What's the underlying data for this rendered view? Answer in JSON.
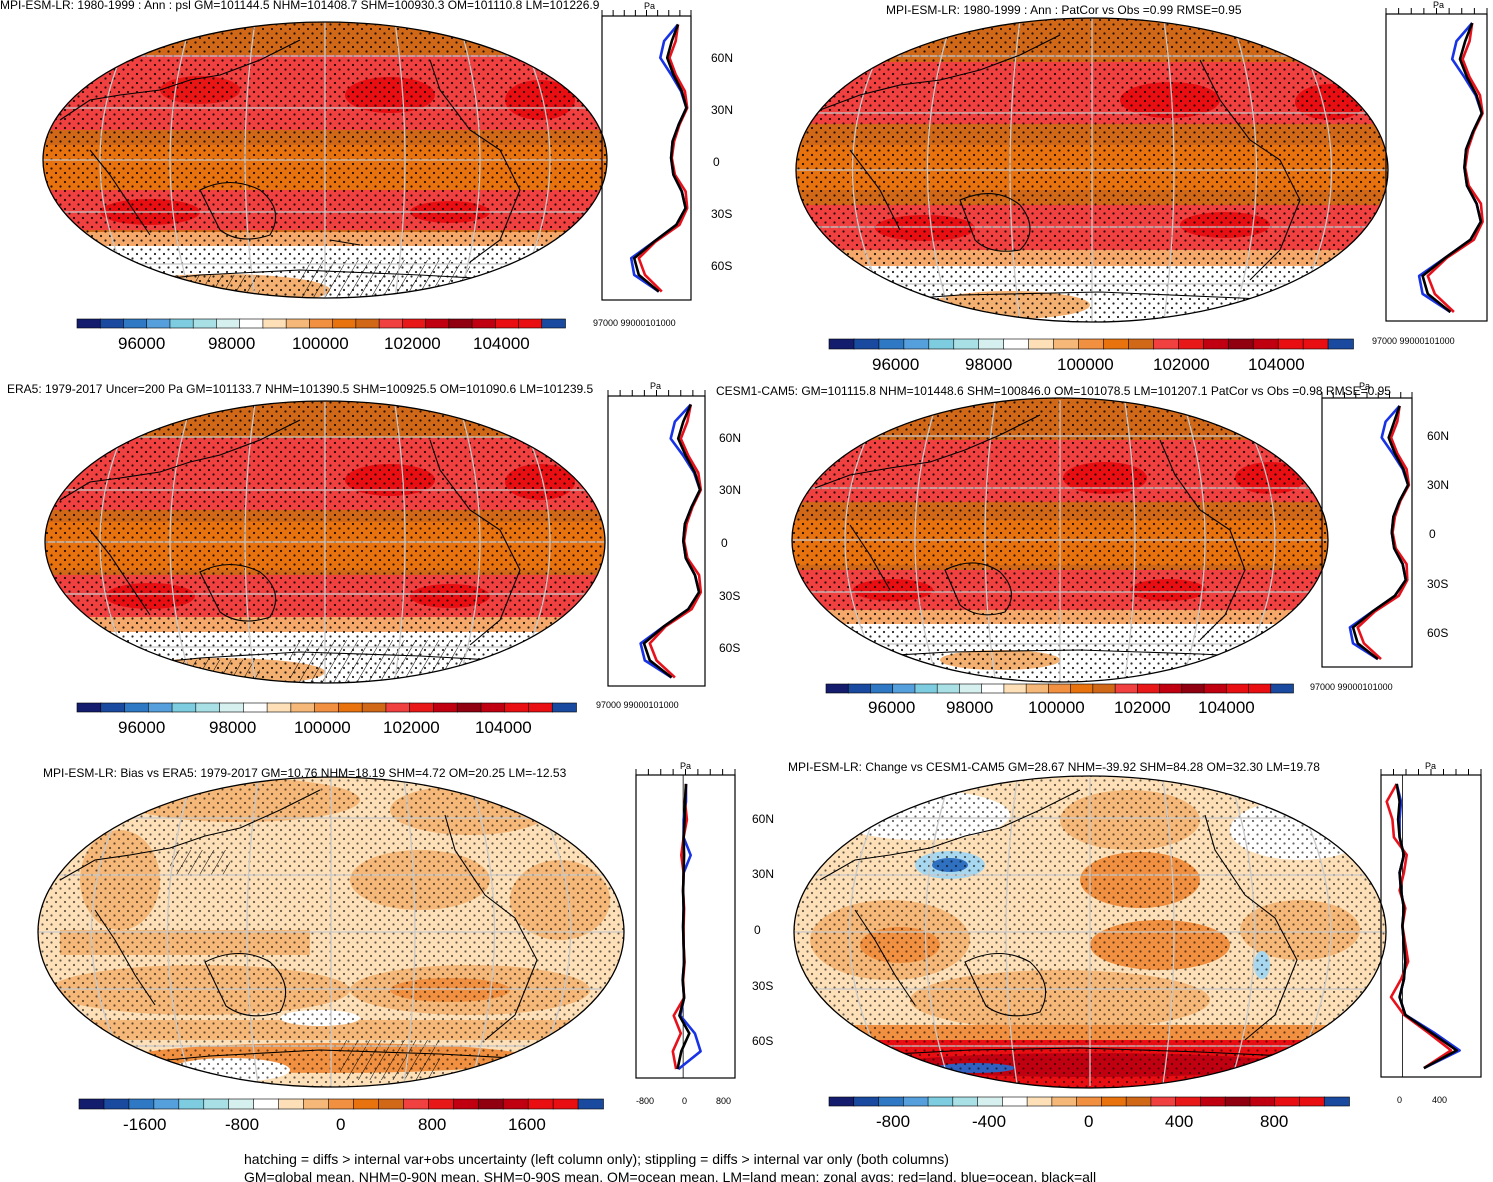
{
  "figure": {
    "footer": [
      "hatching = diffs > internal var+obs uncertainty (left column only); stippling = diffs > internal var only (both columns)",
      "GM=global mean, NHM=0-90N mean, SHM=0-90S mean, OM=ocean mean, LM=land mean; zonal avgs: red=land, blue=ocean, black=all"
    ],
    "lat_labels": [
      "60N",
      "30N",
      "0",
      "30S",
      "60S"
    ],
    "unit_label": "Pa"
  },
  "colors": {
    "land": "#e8111b",
    "ocean": "#1833e6",
    "all": "#000000"
  },
  "chart_data": [
    {
      "type": "heatmap",
      "panel": "mpi-mean",
      "title": "MPI-ESM-LR: 1980-1999 : Ann : psl GM=101144.5 NHM=101408.7 SHM=100930.3 OM=101110.8 LM=101226.9",
      "colorbar_ticks": [
        "96000",
        "98000",
        "100000",
        "102000",
        "104000"
      ],
      "zonal_xticks": "97000 99000101000",
      "zonal": {
        "lat": [
          80,
          70,
          60,
          50,
          40,
          30,
          20,
          10,
          0,
          -10,
          -20,
          -30,
          -40,
          -50,
          -60,
          -70,
          -80
        ],
        "all": [
          101450,
          101050,
          100750,
          101150,
          101700,
          102000,
          101500,
          101100,
          101000,
          101150,
          101700,
          101950,
          101350,
          99900,
          98600,
          98900,
          100200
        ],
        "ocean": [
          101450,
          100550,
          100300,
          101000,
          101650,
          102000,
          101500,
          101100,
          101000,
          101150,
          101700,
          101950,
          101350,
          99900,
          98400,
          98600,
          100200
        ],
        "land": [
          101450,
          101300,
          100900,
          101300,
          101900,
          102050,
          101550,
          101200,
          101050,
          101250,
          101950,
          102050,
          101550,
          100000,
          98900,
          99300,
          100400
        ]
      }
    },
    {
      "type": "heatmap",
      "panel": "mpi-patcor",
      "title": "MPI-ESM-LR: 1980-1999 : Ann : PatCor vs Obs =0.99 RMSE=0.95",
      "colorbar_ticks": [
        "96000",
        "98000",
        "100000",
        "102000",
        "104000"
      ],
      "zonal_xticks": "97000 99000101000",
      "zonal": {
        "lat": [
          80,
          70,
          60,
          50,
          40,
          30,
          20,
          10,
          0,
          -10,
          -20,
          -30,
          -40,
          -50,
          -60,
          -70,
          -80
        ],
        "all": [
          101450,
          101050,
          100750,
          101150,
          101700,
          102000,
          101500,
          101100,
          101000,
          101150,
          101700,
          101950,
          101350,
          99900,
          98600,
          98900,
          100200
        ],
        "ocean": [
          101450,
          100550,
          100300,
          101000,
          101650,
          102000,
          101500,
          101100,
          101000,
          101150,
          101700,
          101950,
          101350,
          99900,
          98400,
          98600,
          100200
        ],
        "land": [
          101450,
          101300,
          100900,
          101300,
          101900,
          102050,
          101550,
          101200,
          101050,
          101250,
          101950,
          102050,
          101550,
          100000,
          98900,
          99300,
          100400
        ]
      }
    },
    {
      "type": "heatmap",
      "panel": "era5-mean",
      "title": "ERA5: 1979-2017 Uncer=200 Pa GM=101133.7 NHM=101390.5 SHM=100925.5 OM=101090.6 LM=101239.5",
      "colorbar_ticks": [
        "96000",
        "98000",
        "100000",
        "102000",
        "104000"
      ],
      "zonal_xticks": "97000 99000101000",
      "zonal": {
        "lat": [
          80,
          70,
          60,
          50,
          40,
          30,
          20,
          10,
          0,
          -10,
          -20,
          -30,
          -40,
          -50,
          -60,
          -70,
          -80
        ],
        "all": [
          101450,
          101000,
          100700,
          101150,
          101700,
          102000,
          101500,
          101100,
          101000,
          101150,
          101700,
          101950,
          101300,
          99850,
          98650,
          99000,
          100300
        ],
        "ocean": [
          101450,
          100500,
          100250,
          101000,
          101650,
          102000,
          101500,
          101100,
          101000,
          101150,
          101700,
          101950,
          101300,
          99850,
          98450,
          98700,
          100300
        ],
        "land": [
          101450,
          101250,
          100850,
          101300,
          101900,
          102050,
          101550,
          101200,
          101050,
          101250,
          101950,
          102050,
          101500,
          99950,
          99000,
          99400,
          100500
        ]
      }
    },
    {
      "type": "heatmap",
      "panel": "cesm-mean",
      "title": "CESM1-CAM5: GM=101115.8 NHM=101448.6 SHM=100846.0 OM=101078.5 LM=101207.1 PatCor vs Obs =0.98 RMSE=0.95",
      "colorbar_ticks": [
        "96000",
        "98000",
        "100000",
        "102000",
        "104000"
      ],
      "zonal_xticks": "97000 99000101000",
      "zonal": {
        "lat": [
          80,
          70,
          60,
          50,
          40,
          30,
          20,
          10,
          0,
          -10,
          -20,
          -30,
          -40,
          -50,
          -60,
          -70,
          -80
        ],
        "all": [
          101500,
          101150,
          100800,
          101200,
          101750,
          102050,
          101500,
          101100,
          101000,
          101150,
          101700,
          101900,
          101200,
          99750,
          98500,
          98800,
          100100
        ],
        "ocean": [
          101500,
          100600,
          100350,
          101050,
          101700,
          102050,
          101500,
          101100,
          101000,
          101150,
          101700,
          101900,
          101200,
          99750,
          98300,
          98500,
          100100
        ],
        "land": [
          101500,
          101350,
          100950,
          101350,
          101950,
          102100,
          101550,
          101200,
          101050,
          101250,
          101950,
          102000,
          101450,
          99900,
          98800,
          99200,
          100300
        ]
      }
    },
    {
      "type": "heatmap",
      "panel": "mpi-bias",
      "title": "MPI-ESM-LR: Bias vs ERA5: 1979-2017 GM=10.76 NHM=18.19 SHM=4.72 OM=20.25 LM=-12.53",
      "colorbar_ticks": [
        "-1600",
        "-800",
        "0",
        "800",
        "1600"
      ],
      "zonal_xticks_list": [
        "-800",
        "0",
        "800"
      ],
      "zonal": {
        "lat": [
          80,
          70,
          60,
          50,
          40,
          30,
          20,
          10,
          0,
          -10,
          -20,
          -30,
          -40,
          -50,
          -60,
          -70,
          -80
        ],
        "all": [
          60,
          40,
          30,
          10,
          20,
          10,
          0,
          10,
          0,
          10,
          20,
          -10,
          20,
          -80,
          130,
          -40,
          -120
        ],
        "ocean": [
          60,
          60,
          10,
          10,
          160,
          10,
          0,
          10,
          0,
          10,
          20,
          -10,
          20,
          -60,
          250,
          370,
          -100
        ],
        "land": [
          60,
          40,
          80,
          10,
          -40,
          10,
          0,
          20,
          10,
          10,
          30,
          0,
          20,
          -200,
          -50,
          -220,
          -150
        ]
      }
    },
    {
      "type": "heatmap",
      "panel": "mpi-change",
      "title": "MPI-ESM-LR: Change vs CESM1-CAM5 GM=28.67 NHM=-39.92 SHM=84.28 OM=32.30 LM=19.78",
      "colorbar_ticks": [
        "-800",
        "-400",
        "0",
        "400",
        "800"
      ],
      "zonal_xticks_list": [
        "0",
        "400"
      ],
      "zonal": {
        "lat": [
          80,
          70,
          60,
          50,
          40,
          30,
          20,
          10,
          0,
          -10,
          -20,
          -30,
          -40,
          -50,
          -60,
          -70,
          -80
        ],
        "all": [
          -40,
          -20,
          -30,
          -20,
          10,
          -20,
          -10,
          10,
          0,
          10,
          20,
          10,
          -20,
          20,
          200,
          380,
          150
        ],
        "ocean": [
          -40,
          -10,
          -20,
          -20,
          10,
          -20,
          -10,
          10,
          0,
          10,
          20,
          10,
          -20,
          20,
          220,
          400,
          150
        ],
        "land": [
          -40,
          -110,
          -70,
          -60,
          30,
          10,
          -20,
          20,
          0,
          20,
          40,
          -10,
          -80,
          10,
          180,
          340,
          150
        ]
      }
    }
  ]
}
